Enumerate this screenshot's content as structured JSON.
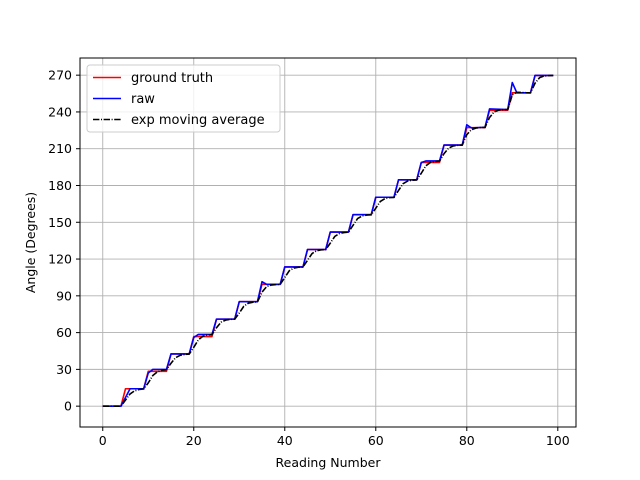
{
  "chart_data": {
    "type": "line",
    "title": "",
    "xlabel": "Reading Number",
    "ylabel": "Angle (Degrees)",
    "xlim": [
      -5,
      104
    ],
    "ylim": [
      -17,
      284
    ],
    "xticks": [
      0,
      20,
      40,
      60,
      80,
      100
    ],
    "yticks": [
      0,
      30,
      60,
      90,
      120,
      150,
      180,
      210,
      240,
      270
    ],
    "grid": true,
    "legend_position": "top-left",
    "series": [
      {
        "name": "ground truth",
        "color": "#ff0000",
        "style": "solid",
        "points": [
          [
            0,
            0
          ],
          [
            4,
            0
          ],
          [
            5,
            14.2
          ],
          [
            9,
            14.2
          ],
          [
            10,
            28.4
          ],
          [
            14,
            28.4
          ],
          [
            15,
            42.6
          ],
          [
            19,
            42.6
          ],
          [
            20,
            56.8
          ],
          [
            24,
            56.8
          ],
          [
            25,
            71
          ],
          [
            29,
            71
          ],
          [
            30,
            85.2
          ],
          [
            34,
            85.2
          ],
          [
            35,
            99.4
          ],
          [
            39,
            99.4
          ],
          [
            40,
            113.6
          ],
          [
            44,
            113.6
          ],
          [
            45,
            127.8
          ],
          [
            49,
            127.8
          ],
          [
            50,
            142
          ],
          [
            54,
            142
          ],
          [
            55,
            156.2
          ],
          [
            59,
            156.2
          ],
          [
            60,
            170.4
          ],
          [
            64,
            170.4
          ],
          [
            65,
            184.6
          ],
          [
            69,
            184.6
          ],
          [
            70,
            198.8
          ],
          [
            74,
            198.8
          ],
          [
            75,
            213
          ],
          [
            79,
            213
          ],
          [
            80,
            227.2
          ],
          [
            84,
            227.2
          ],
          [
            85,
            241.4
          ],
          [
            89,
            241.4
          ],
          [
            90,
            255.6
          ],
          [
            94,
            255.6
          ],
          [
            95,
            269.8
          ],
          [
            99,
            269.8
          ]
        ]
      },
      {
        "name": "raw",
        "color": "#0000ff",
        "style": "solid",
        "points": [
          [
            0,
            0
          ],
          [
            4,
            0
          ],
          [
            6,
            14.2
          ],
          [
            9,
            14.2
          ],
          [
            10,
            27
          ],
          [
            11,
            30
          ],
          [
            14,
            30
          ],
          [
            15,
            42.6
          ],
          [
            19,
            42.6
          ],
          [
            20,
            56
          ],
          [
            21,
            58.5
          ],
          [
            24,
            58.5
          ],
          [
            25,
            71
          ],
          [
            29,
            71
          ],
          [
            30,
            85.2
          ],
          [
            34,
            85.2
          ],
          [
            35,
            101.5
          ],
          [
            36,
            99.4
          ],
          [
            39,
            99.4
          ],
          [
            40,
            113.6
          ],
          [
            44,
            113.6
          ],
          [
            45,
            127.8
          ],
          [
            49,
            127.8
          ],
          [
            50,
            142
          ],
          [
            54,
            142
          ],
          [
            55,
            156.2
          ],
          [
            59,
            156.2
          ],
          [
            60,
            170.4
          ],
          [
            64,
            170.4
          ],
          [
            65,
            184.6
          ],
          [
            69,
            184.6
          ],
          [
            70,
            198.8
          ],
          [
            71,
            200
          ],
          [
            74,
            200
          ],
          [
            75,
            213
          ],
          [
            79,
            213
          ],
          [
            80,
            229.5
          ],
          [
            81,
            227
          ],
          [
            84,
            227.5
          ],
          [
            85,
            242.5
          ],
          [
            89,
            242
          ],
          [
            90,
            264
          ],
          [
            91,
            255.6
          ],
          [
            94,
            255.6
          ],
          [
            95,
            269.8
          ],
          [
            99,
            269.8
          ]
        ]
      },
      {
        "name": "exp moving average",
        "color": "#000000",
        "style": "dashdot",
        "points": [
          [
            0,
            0
          ],
          [
            4,
            0
          ],
          [
            5,
            5
          ],
          [
            6,
            10
          ],
          [
            7,
            12.5
          ],
          [
            8,
            13.6
          ],
          [
            9,
            14
          ],
          [
            10,
            19
          ],
          [
            11,
            25
          ],
          [
            12,
            28
          ],
          [
            13,
            29.3
          ],
          [
            14,
            29.8
          ],
          [
            15,
            35
          ],
          [
            16,
            39.5
          ],
          [
            17,
            41.5
          ],
          [
            18,
            42.2
          ],
          [
            19,
            42.5
          ],
          [
            20,
            48
          ],
          [
            21,
            54
          ],
          [
            22,
            57
          ],
          [
            23,
            58
          ],
          [
            24,
            58.4
          ],
          [
            25,
            64
          ],
          [
            26,
            68.5
          ],
          [
            27,
            70.2
          ],
          [
            28,
            70.8
          ],
          [
            29,
            71
          ],
          [
            30,
            76
          ],
          [
            31,
            81.5
          ],
          [
            32,
            84
          ],
          [
            33,
            84.8
          ],
          [
            34,
            85.1
          ],
          [
            35,
            93
          ],
          [
            36,
            97.5
          ],
          [
            37,
            98.8
          ],
          [
            38,
            99.2
          ],
          [
            39,
            99.4
          ],
          [
            40,
            105
          ],
          [
            41,
            110.5
          ],
          [
            42,
            112.6
          ],
          [
            43,
            113.3
          ],
          [
            44,
            113.5
          ],
          [
            45,
            119
          ],
          [
            46,
            124.5
          ],
          [
            47,
            126.8
          ],
          [
            48,
            127.5
          ],
          [
            49,
            127.7
          ],
          [
            50,
            133
          ],
          [
            51,
            138.5
          ],
          [
            52,
            140.8
          ],
          [
            53,
            141.6
          ],
          [
            54,
            141.9
          ],
          [
            55,
            147.5
          ],
          [
            56,
            153
          ],
          [
            57,
            155.2
          ],
          [
            58,
            155.9
          ],
          [
            59,
            156.1
          ],
          [
            60,
            161.5
          ],
          [
            61,
            167
          ],
          [
            62,
            169.3
          ],
          [
            63,
            170.1
          ],
          [
            64,
            170.3
          ],
          [
            65,
            176
          ],
          [
            66,
            181.5
          ],
          [
            67,
            183.6
          ],
          [
            68,
            184.3
          ],
          [
            69,
            184.5
          ],
          [
            70,
            190
          ],
          [
            71,
            196
          ],
          [
            72,
            198.8
          ],
          [
            73,
            199.6
          ],
          [
            74,
            199.9
          ],
          [
            75,
            206
          ],
          [
            76,
            210.5
          ],
          [
            77,
            212.2
          ],
          [
            78,
            212.8
          ],
          [
            79,
            213
          ],
          [
            80,
            221.5
          ],
          [
            81,
            225.5
          ],
          [
            82,
            226.8
          ],
          [
            83,
            227.3
          ],
          [
            84,
            227.4
          ],
          [
            85,
            235.5
          ],
          [
            86,
            240
          ],
          [
            87,
            241.5
          ],
          [
            88,
            241.9
          ],
          [
            89,
            242
          ],
          [
            90,
            254
          ],
          [
            91,
            256
          ],
          [
            92,
            255.9
          ],
          [
            93,
            255.7
          ],
          [
            94,
            255.6
          ],
          [
            95,
            263.5
          ],
          [
            96,
            268
          ],
          [
            97,
            269.3
          ],
          [
            98,
            269.7
          ],
          [
            99,
            269.8
          ]
        ]
      }
    ]
  }
}
